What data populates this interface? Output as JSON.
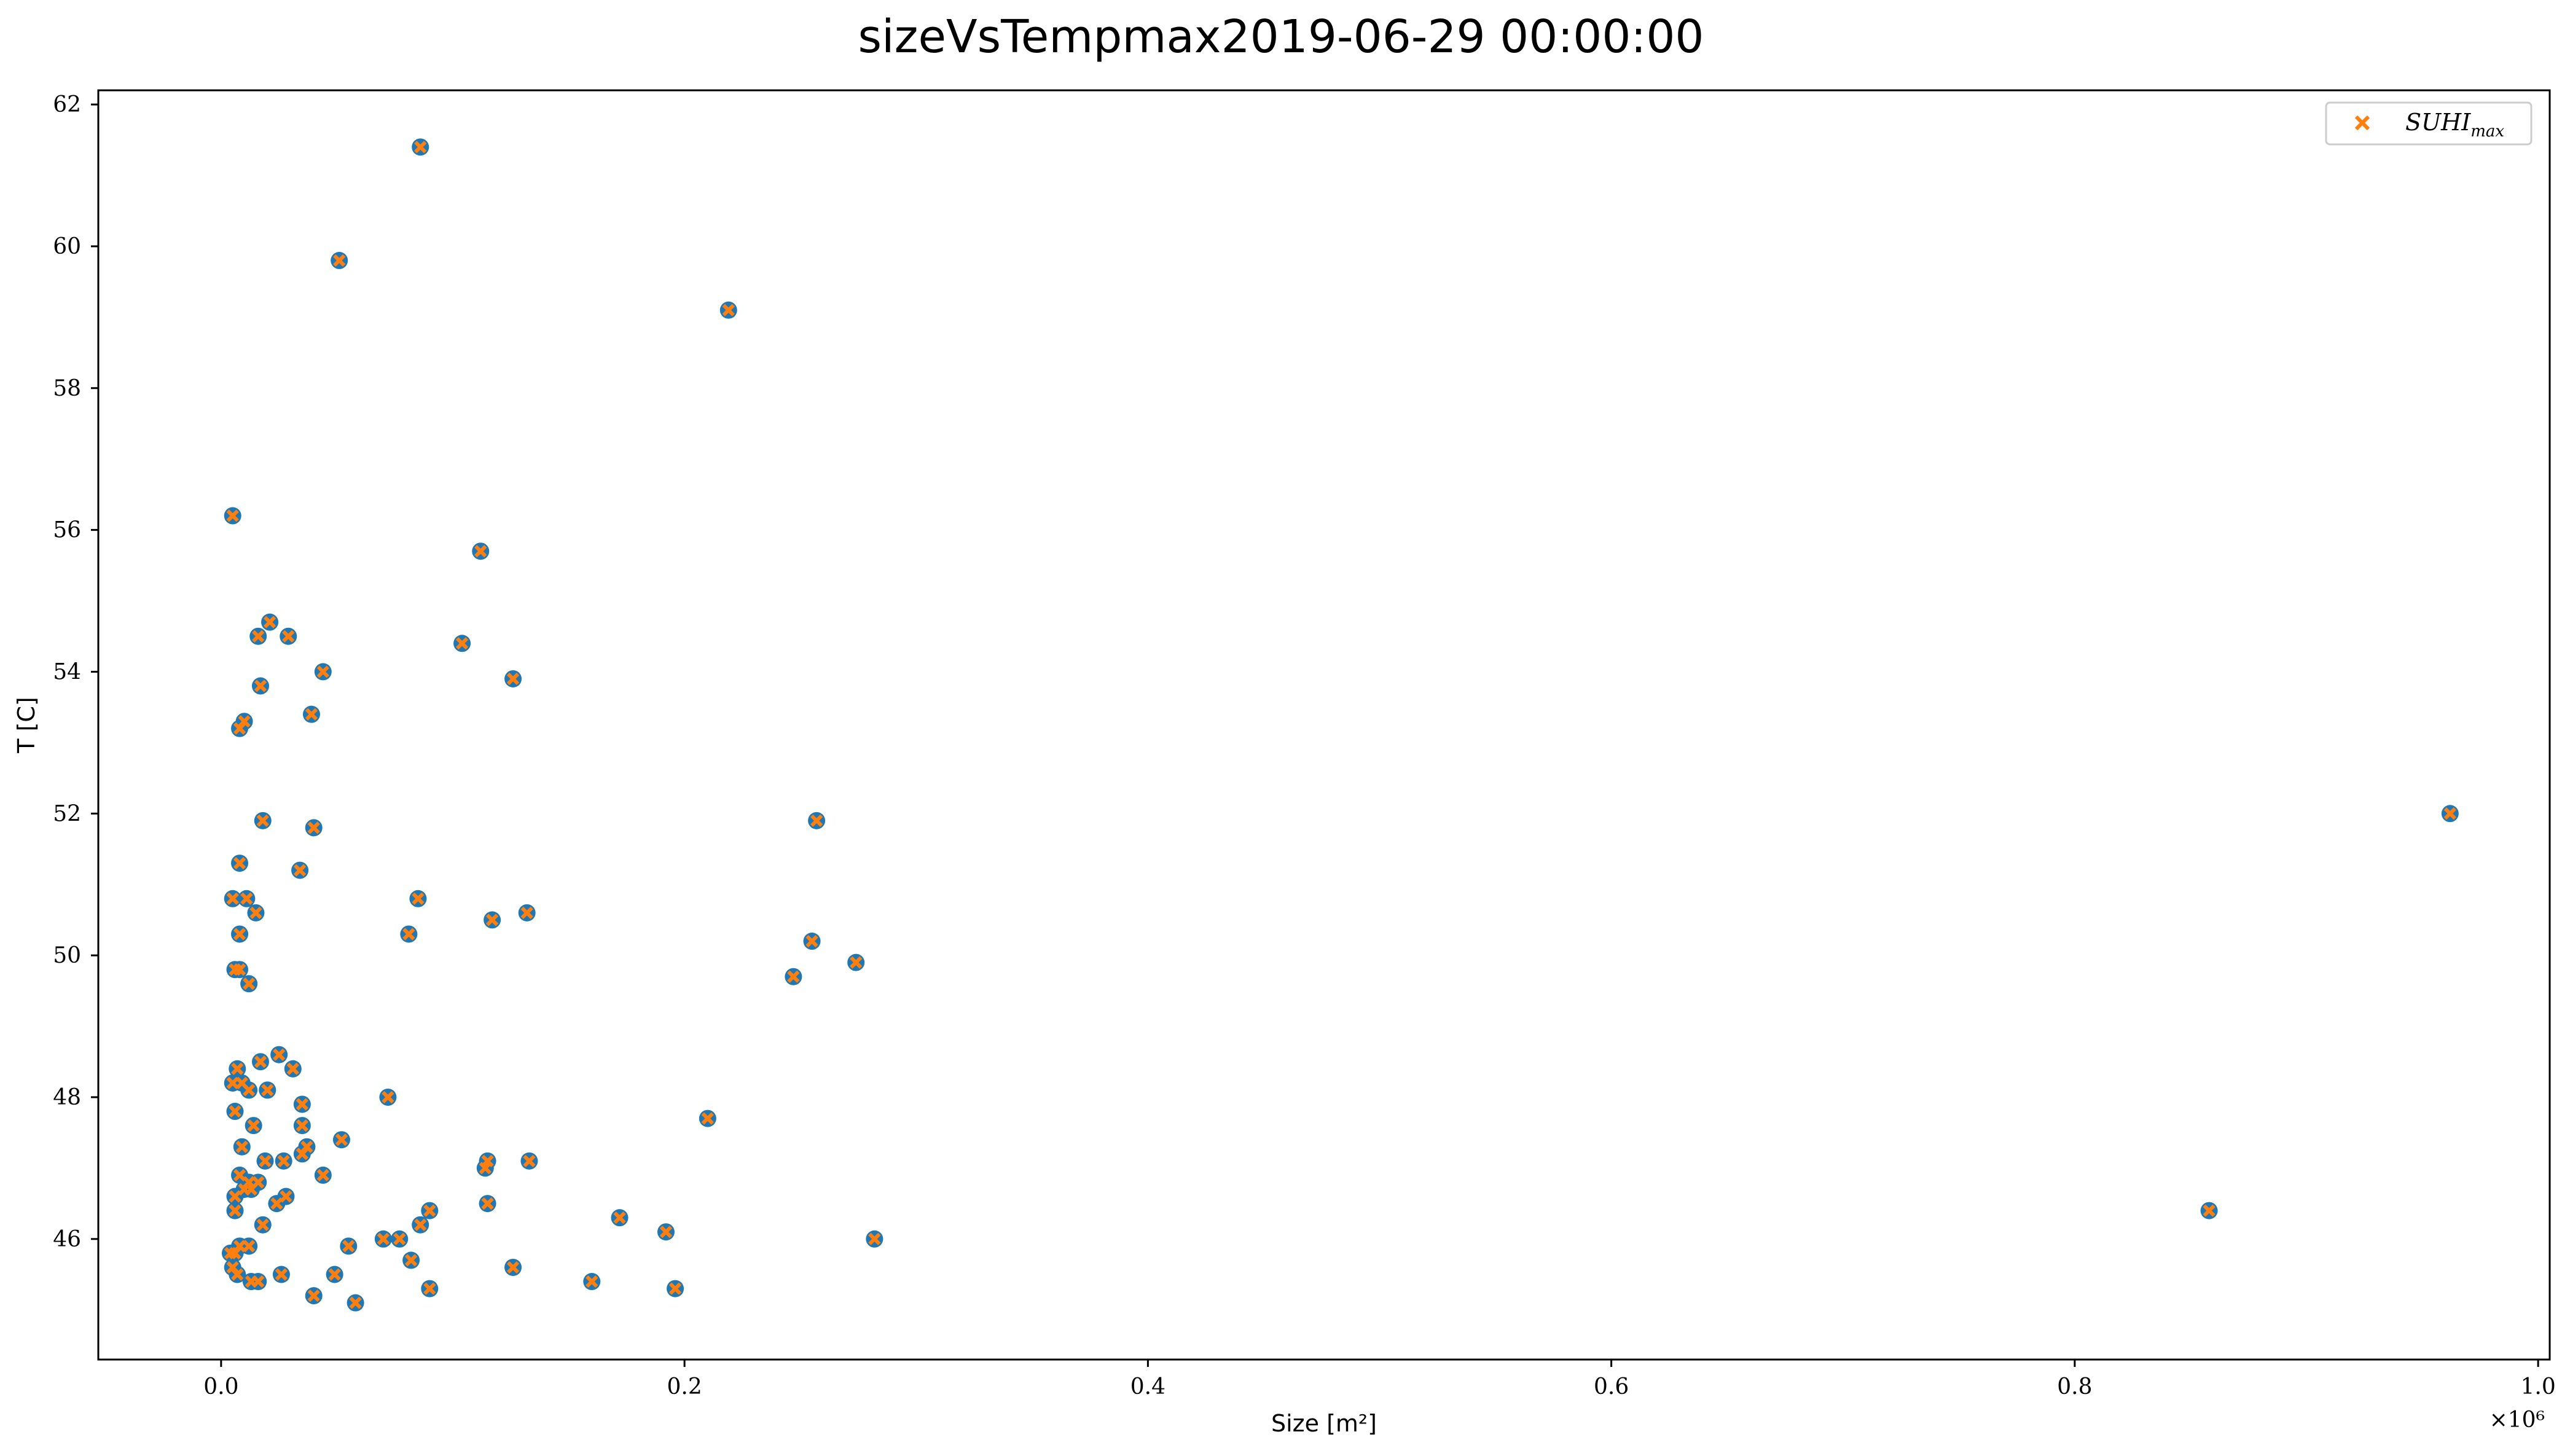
{
  "chart_data": {
    "type": "scatter",
    "title": "sizeVsTempmax2019-06-29 00:00:00",
    "xlabel": "Size [m²]",
    "ylabel": "T [C]",
    "x_scale_label": "×10⁶",
    "xlim": [
      -0.053,
      1.005
    ],
    "ylim": [
      44.3,
      62.2
    ],
    "xticks": [
      0.0,
      0.2,
      0.4,
      0.6,
      0.8,
      1.0
    ],
    "xtick_labels": [
      "0.0",
      "0.2",
      "0.4",
      "0.6",
      "0.8",
      "1.0"
    ],
    "yticks": [
      46,
      48,
      50,
      52,
      54,
      56,
      58,
      60,
      62
    ],
    "ytick_labels": [
      "46",
      "48",
      "50",
      "52",
      "54",
      "56",
      "58",
      "60",
      "62"
    ],
    "grid": false,
    "legend_position": "top-right",
    "series": [
      {
        "name": "",
        "marker": "circle",
        "color": "#1f77b4",
        "points": [
          [
            0.005,
            56.2
          ],
          [
            0.008,
            53.2
          ],
          [
            0.01,
            53.3
          ],
          [
            0.016,
            54.5
          ],
          [
            0.021,
            54.7
          ],
          [
            0.029,
            54.5
          ],
          [
            0.017,
            53.8
          ],
          [
            0.039,
            53.4
          ],
          [
            0.044,
            54.0
          ],
          [
            0.018,
            51.9
          ],
          [
            0.04,
            51.8
          ],
          [
            0.008,
            51.3
          ],
          [
            0.034,
            51.2
          ],
          [
            0.005,
            50.8
          ],
          [
            0.011,
            50.8
          ],
          [
            0.015,
            50.6
          ],
          [
            0.008,
            50.3
          ],
          [
            0.006,
            49.8
          ],
          [
            0.008,
            49.8
          ],
          [
            0.012,
            49.6
          ],
          [
            0.086,
            61.4
          ],
          [
            0.051,
            59.8
          ],
          [
            0.219,
            59.1
          ],
          [
            0.112,
            55.7
          ],
          [
            0.104,
            54.4
          ],
          [
            0.126,
            53.9
          ],
          [
            0.257,
            51.9
          ],
          [
            0.085,
            50.8
          ],
          [
            0.117,
            50.5
          ],
          [
            0.132,
            50.6
          ],
          [
            0.081,
            50.3
          ],
          [
            0.255,
            50.2
          ],
          [
            0.247,
            49.7
          ],
          [
            0.274,
            49.9
          ],
          [
            0.962,
            52.0
          ],
          [
            0.858,
            46.4
          ],
          [
            0.005,
            48.2
          ],
          [
            0.007,
            48.4
          ],
          [
            0.009,
            48.2
          ],
          [
            0.012,
            48.1
          ],
          [
            0.017,
            48.5
          ],
          [
            0.02,
            48.1
          ],
          [
            0.025,
            48.6
          ],
          [
            0.031,
            48.4
          ],
          [
            0.035,
            47.9
          ],
          [
            0.006,
            47.8
          ],
          [
            0.014,
            47.6
          ],
          [
            0.009,
            47.3
          ],
          [
            0.035,
            47.6
          ],
          [
            0.037,
            47.3
          ],
          [
            0.035,
            47.2
          ],
          [
            0.052,
            47.4
          ],
          [
            0.072,
            48.0
          ],
          [
            0.044,
            46.9
          ],
          [
            0.019,
            47.1
          ],
          [
            0.027,
            47.1
          ],
          [
            0.008,
            46.9
          ],
          [
            0.012,
            46.8
          ],
          [
            0.016,
            46.8
          ],
          [
            0.01,
            46.7
          ],
          [
            0.013,
            46.7
          ],
          [
            0.006,
            46.6
          ],
          [
            0.024,
            46.5
          ],
          [
            0.028,
            46.6
          ],
          [
            0.006,
            46.4
          ],
          [
            0.018,
            46.2
          ],
          [
            0.004,
            45.8
          ],
          [
            0.006,
            45.8
          ],
          [
            0.008,
            45.9
          ],
          [
            0.012,
            45.9
          ],
          [
            0.005,
            45.6
          ],
          [
            0.007,
            45.5
          ],
          [
            0.013,
            45.4
          ],
          [
            0.016,
            45.4
          ],
          [
            0.026,
            45.5
          ],
          [
            0.04,
            45.2
          ],
          [
            0.049,
            45.5
          ],
          [
            0.055,
            45.9
          ],
          [
            0.058,
            45.1
          ],
          [
            0.07,
            46.0
          ],
          [
            0.077,
            46.0
          ],
          [
            0.082,
            45.7
          ],
          [
            0.086,
            46.2
          ],
          [
            0.09,
            46.4
          ],
          [
            0.09,
            45.3
          ],
          [
            0.114,
            47.0
          ],
          [
            0.115,
            47.1
          ],
          [
            0.115,
            46.5
          ],
          [
            0.133,
            47.1
          ],
          [
            0.126,
            45.6
          ],
          [
            0.172,
            46.3
          ],
          [
            0.16,
            45.4
          ],
          [
            0.192,
            46.1
          ],
          [
            0.196,
            45.3
          ],
          [
            0.21,
            47.7
          ],
          [
            0.282,
            46.0
          ]
        ]
      },
      {
        "name": "SUHI_max",
        "marker": "x",
        "color": "#ff7f0e",
        "points": [
          [
            0.005,
            56.2
          ],
          [
            0.008,
            53.2
          ],
          [
            0.01,
            53.3
          ],
          [
            0.016,
            54.5
          ],
          [
            0.021,
            54.7
          ],
          [
            0.029,
            54.5
          ],
          [
            0.017,
            53.8
          ],
          [
            0.039,
            53.4
          ],
          [
            0.044,
            54.0
          ],
          [
            0.018,
            51.9
          ],
          [
            0.04,
            51.8
          ],
          [
            0.008,
            51.3
          ],
          [
            0.034,
            51.2
          ],
          [
            0.005,
            50.8
          ],
          [
            0.011,
            50.8
          ],
          [
            0.015,
            50.6
          ],
          [
            0.008,
            50.3
          ],
          [
            0.006,
            49.8
          ],
          [
            0.008,
            49.8
          ],
          [
            0.012,
            49.6
          ],
          [
            0.086,
            61.4
          ],
          [
            0.051,
            59.8
          ],
          [
            0.219,
            59.1
          ],
          [
            0.112,
            55.7
          ],
          [
            0.104,
            54.4
          ],
          [
            0.126,
            53.9
          ],
          [
            0.257,
            51.9
          ],
          [
            0.085,
            50.8
          ],
          [
            0.117,
            50.5
          ],
          [
            0.132,
            50.6
          ],
          [
            0.081,
            50.3
          ],
          [
            0.255,
            50.2
          ],
          [
            0.247,
            49.7
          ],
          [
            0.274,
            49.9
          ],
          [
            0.962,
            52.0
          ],
          [
            0.858,
            46.4
          ],
          [
            0.005,
            48.2
          ],
          [
            0.007,
            48.4
          ],
          [
            0.009,
            48.2
          ],
          [
            0.012,
            48.1
          ],
          [
            0.017,
            48.5
          ],
          [
            0.02,
            48.1
          ],
          [
            0.025,
            48.6
          ],
          [
            0.031,
            48.4
          ],
          [
            0.035,
            47.9
          ],
          [
            0.006,
            47.8
          ],
          [
            0.014,
            47.6
          ],
          [
            0.009,
            47.3
          ],
          [
            0.035,
            47.6
          ],
          [
            0.037,
            47.3
          ],
          [
            0.035,
            47.2
          ],
          [
            0.052,
            47.4
          ],
          [
            0.072,
            48.0
          ],
          [
            0.044,
            46.9
          ],
          [
            0.019,
            47.1
          ],
          [
            0.027,
            47.1
          ],
          [
            0.008,
            46.9
          ],
          [
            0.012,
            46.8
          ],
          [
            0.016,
            46.8
          ],
          [
            0.01,
            46.7
          ],
          [
            0.013,
            46.7
          ],
          [
            0.006,
            46.6
          ],
          [
            0.024,
            46.5
          ],
          [
            0.028,
            46.6
          ],
          [
            0.006,
            46.4
          ],
          [
            0.018,
            46.2
          ],
          [
            0.004,
            45.8
          ],
          [
            0.006,
            45.8
          ],
          [
            0.008,
            45.9
          ],
          [
            0.012,
            45.9
          ],
          [
            0.005,
            45.6
          ],
          [
            0.007,
            45.5
          ],
          [
            0.013,
            45.4
          ],
          [
            0.016,
            45.4
          ],
          [
            0.026,
            45.5
          ],
          [
            0.04,
            45.2
          ],
          [
            0.049,
            45.5
          ],
          [
            0.055,
            45.9
          ],
          [
            0.058,
            45.1
          ],
          [
            0.07,
            46.0
          ],
          [
            0.077,
            46.0
          ],
          [
            0.082,
            45.7
          ],
          [
            0.086,
            46.2
          ],
          [
            0.09,
            46.4
          ],
          [
            0.09,
            45.3
          ],
          [
            0.114,
            47.0
          ],
          [
            0.115,
            47.1
          ],
          [
            0.115,
            46.5
          ],
          [
            0.133,
            47.1
          ],
          [
            0.126,
            45.6
          ],
          [
            0.172,
            46.3
          ],
          [
            0.16,
            45.4
          ],
          [
            0.192,
            46.1
          ],
          [
            0.196,
            45.3
          ],
          [
            0.21,
            47.7
          ],
          [
            0.282,
            46.0
          ]
        ]
      }
    ],
    "legend": {
      "entries": [
        {
          "label_main": "SUHI",
          "label_sub": "max",
          "marker": "x",
          "color": "#ff7f0e"
        }
      ]
    }
  }
}
